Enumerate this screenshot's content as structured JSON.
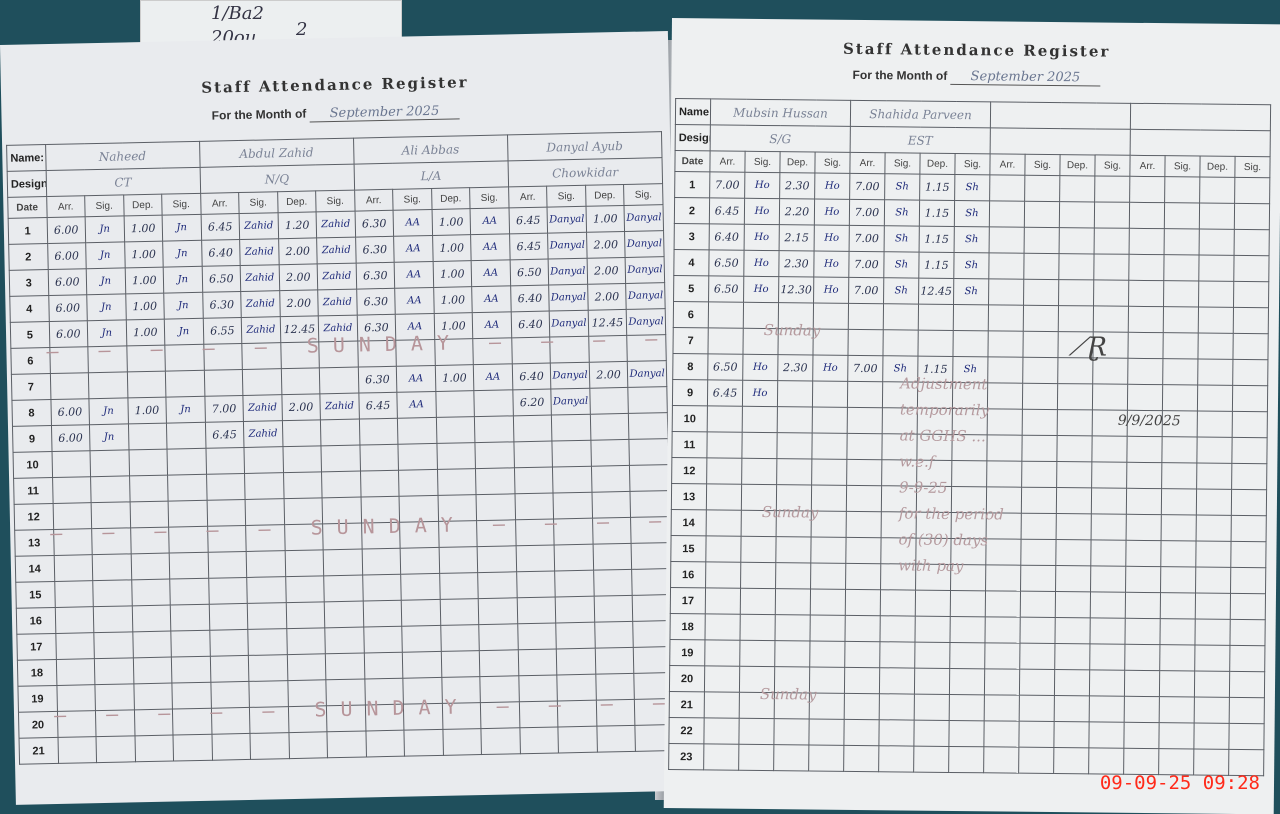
{
  "slip_text": [
    "1/Ba2",
    "20ou",
    "2"
  ],
  "register_title": "Staff Attendance Register",
  "month_label": "For the Month of",
  "month_value": "September 2025",
  "labels": {
    "name": "Name:",
    "designation": "Designation:",
    "date": "Date",
    "columns": [
      "Arr.",
      "Sig.",
      "Dep.",
      "Sig."
    ]
  },
  "left_page": {
    "rows": 21,
    "staff": [
      {
        "name": "Naheed",
        "designation": "CT",
        "entries": {
          "1": [
            "6.00",
            "Jn",
            "1.00",
            "Jn"
          ],
          "2": [
            "6.00",
            "Jn",
            "1.00",
            "Jn"
          ],
          "3": [
            "6.00",
            "Jn",
            "1.00",
            "Jn"
          ],
          "4": [
            "6.00",
            "Jn",
            "1.00",
            "Jn"
          ],
          "5": [
            "6.00",
            "Jn",
            "1.00",
            "Jn"
          ],
          "8": [
            "6.00",
            "Jn",
            "1.00",
            "Jn"
          ],
          "9": [
            "6.00",
            "Jn",
            "",
            ""
          ]
        }
      },
      {
        "name": "Abdul Zahid",
        "designation": "N/Q",
        "entries": {
          "1": [
            "6.45",
            "Zahid",
            "1.20",
            "Zahid"
          ],
          "2": [
            "6.40",
            "Zahid",
            "2.00",
            "Zahid"
          ],
          "3": [
            "6.50",
            "Zahid",
            "2.00",
            "Zahid"
          ],
          "4": [
            "6.30",
            "Zahid",
            "2.00",
            "Zahid"
          ],
          "5": [
            "6.55",
            "Zahid",
            "12.45",
            "Zahid"
          ],
          "8": [
            "7.00",
            "Zahid",
            "2.00",
            "Zahid"
          ],
          "9": [
            "6.45",
            "Zahid",
            "",
            ""
          ]
        }
      },
      {
        "name": "Ali Abbas",
        "designation": "L/A",
        "entries": {
          "1": [
            "6.30",
            "AA",
            "1.00",
            "AA"
          ],
          "2": [
            "6.30",
            "AA",
            "1.00",
            "AA"
          ],
          "3": [
            "6.30",
            "AA",
            "1.00",
            "AA"
          ],
          "4": [
            "6.30",
            "AA",
            "1.00",
            "AA"
          ],
          "5": [
            "6.30",
            "AA",
            "1.00",
            "AA"
          ],
          "7": [
            "6.30",
            "AA",
            "1.00",
            "AA"
          ],
          "8": [
            "6.45",
            "AA",
            "",
            ""
          ]
        }
      },
      {
        "name": "Danyal Ayub",
        "designation": "Chowkidar",
        "entries": {
          "1": [
            "6.45",
            "Danyal",
            "1.00",
            "Danyal"
          ],
          "2": [
            "6.45",
            "Danyal",
            "2.00",
            "Danyal"
          ],
          "3": [
            "6.50",
            "Danyal",
            "2.00",
            "Danyal"
          ],
          "4": [
            "6.40",
            "Danyal",
            "2.00",
            "Danyal"
          ],
          "5": [
            "6.40",
            "Danyal",
            "12.45",
            "Danyal"
          ],
          "7": [
            "6.40",
            "Danyal",
            "2.00",
            "Danyal"
          ],
          "8": [
            "6.20",
            "Danyal",
            "",
            ""
          ]
        }
      }
    ],
    "sunday_rows": [
      6,
      13,
      20
    ],
    "sunday_text": "SUNDAY"
  },
  "right_page": {
    "rows": 23,
    "staff": [
      {
        "name": "Mubsin Hussan",
        "designation": "S/G",
        "entries": {
          "1": [
            "7.00",
            "Ho",
            "2.30",
            "Ho"
          ],
          "2": [
            "6.45",
            "Ho",
            "2.20",
            "Ho"
          ],
          "3": [
            "6.40",
            "Ho",
            "2.15",
            "Ho"
          ],
          "4": [
            "6.50",
            "Ho",
            "2.30",
            "Ho"
          ],
          "5": [
            "6.50",
            "Ho",
            "12.30",
            "Ho"
          ],
          "8": [
            "6.50",
            "Ho",
            "2.30",
            "Ho"
          ],
          "9": [
            "6.45",
            "Ho",
            "",
            ""
          ]
        }
      },
      {
        "name": "Shahida Parveen",
        "designation": "EST",
        "entries": {
          "1": [
            "7.00",
            "Sh",
            "1.15",
            "Sh"
          ],
          "2": [
            "7.00",
            "Sh",
            "1.15",
            "Sh"
          ],
          "3": [
            "7.00",
            "Sh",
            "1.15",
            "Sh"
          ],
          "4": [
            "7.00",
            "Sh",
            "1.15",
            "Sh"
          ],
          "5": [
            "7.00",
            "Sh",
            "12.45",
            "Sh"
          ],
          "8": [
            "7.00",
            "Sh",
            "1.15",
            "Sh"
          ]
        }
      },
      {
        "name": "",
        "designation": "",
        "entries": {}
      },
      {
        "name": "",
        "designation": "",
        "entries": {}
      }
    ],
    "sunday_rows": [
      7,
      14,
      21
    ],
    "sunday_text": "Sunday",
    "note": [
      "Adjustment",
      "temporarily",
      "at GGHS ...",
      "w.e.f",
      "9-9-25",
      "for the period",
      "of (30) days",
      "with pay"
    ],
    "signature_date": "9/9/2025"
  },
  "camera_timestamp": "09-09-25  09:28"
}
